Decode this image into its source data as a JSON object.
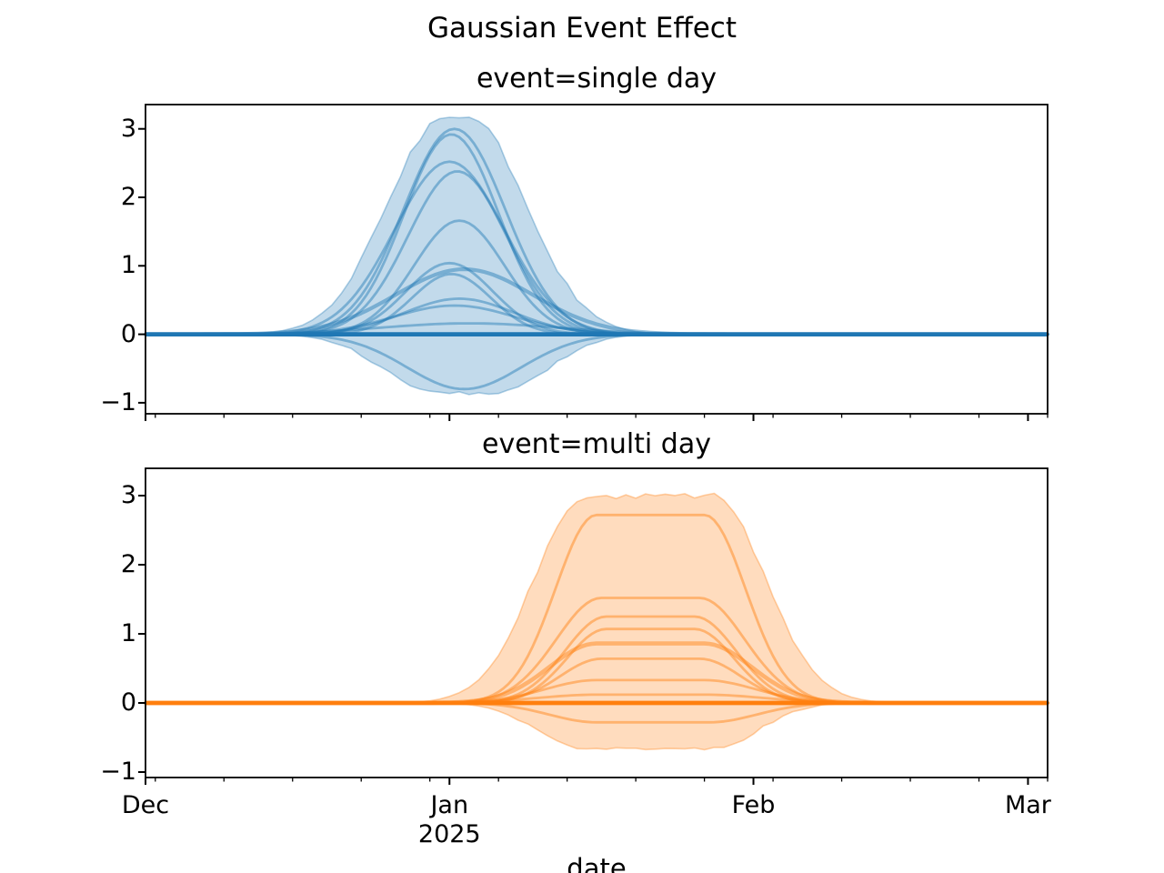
{
  "chart_data": {
    "type": "line",
    "title": "Gaussian Event Effect",
    "xlabel": "date",
    "legend": "none",
    "grid": false,
    "background_color": "#ffffff",
    "axis_color": "#000000",
    "x_axis": {
      "unit": "date",
      "day_zero_date": "Dec 1, 2024",
      "xlim_days": [
        0,
        92
      ],
      "major_ticks": [
        {
          "day": 0,
          "label": "Dec"
        },
        {
          "day": 31,
          "label": "Jan",
          "year_label": "2025"
        },
        {
          "day": 62,
          "label": "Feb"
        },
        {
          "day": 90,
          "label": "Mar"
        }
      ],
      "minor_tick_days": [
        1,
        8,
        15,
        22,
        29,
        36,
        43,
        50,
        57,
        64,
        71,
        78,
        85,
        92
      ]
    },
    "y_axis": {
      "ylim": [
        -1.14,
        3.38
      ],
      "ticks": [
        {
          "value": -1,
          "label": "−1"
        },
        {
          "value": 0,
          "label": "0"
        },
        {
          "value": 1,
          "label": "1"
        },
        {
          "value": 2,
          "label": "2"
        },
        {
          "value": 3,
          "label": "3"
        }
      ]
    },
    "facets": [
      {
        "title": "event=single day",
        "shape": "gaussian",
        "color": "#1f77b4",
        "fill_opacity": 0.27,
        "line_opacity": 0.45,
        "baseline_value": 0,
        "baseline_line_width": 4.8,
        "curves": [
          {
            "peak": 3.0,
            "center_day": 31.5,
            "sigma_days": 5.2
          },
          {
            "peak": 2.92,
            "center_day": 31.2,
            "sigma_days": 4.8
          },
          {
            "peak": 2.52,
            "center_day": 31.0,
            "sigma_days": 5.6
          },
          {
            "peak": 2.38,
            "center_day": 31.8,
            "sigma_days": 5.0
          },
          {
            "peak": 1.66,
            "center_day": 32.0,
            "sigma_days": 4.6
          },
          {
            "peak": 1.04,
            "center_day": 31.0,
            "sigma_days": 4.4
          },
          {
            "peak": 0.95,
            "center_day": 32.5,
            "sigma_days": 7.0,
            "line_width": 4.2
          },
          {
            "peak": 0.88,
            "center_day": 31.2,
            "sigma_days": 4.0
          },
          {
            "peak": 0.52,
            "center_day": 32.0,
            "sigma_days": 5.6
          },
          {
            "peak": 0.42,
            "center_day": 31.5,
            "sigma_days": 6.2
          },
          {
            "peak": 0.16,
            "center_day": 33.0,
            "sigma_days": 9.0
          },
          {
            "peak": -0.8,
            "center_day": 32.5,
            "sigma_days": 5.8
          }
        ],
        "envelope": {
          "top_peak": 3.14,
          "top_start_day": 30.5,
          "top_end_day": 33.0,
          "top_sigma_days": 5.8,
          "bottom_peak": -0.86,
          "bottom_start_day": 29.5,
          "bottom_end_day": 35.5,
          "bottom_sigma_days": 5.2
        }
      },
      {
        "title": "event=multi day",
        "shape": "plateau",
        "color": "#ff7f0e",
        "fill_opacity": 0.27,
        "line_opacity": 0.45,
        "baseline_value": 0,
        "baseline_line_width": 4.8,
        "curves": [
          {
            "peak": 2.72,
            "start_day": 46.0,
            "end_day": 57.0,
            "sigma_days": 4.2
          },
          {
            "peak": 1.52,
            "start_day": 46.5,
            "end_day": 56.5,
            "sigma_days": 4.6
          },
          {
            "peak": 1.25,
            "start_day": 47.0,
            "end_day": 56.0,
            "sigma_days": 4.2
          },
          {
            "peak": 1.07,
            "start_day": 47.0,
            "end_day": 56.0,
            "sigma_days": 4.0
          },
          {
            "peak": 0.86,
            "start_day": 46.0,
            "end_day": 57.0,
            "sigma_days": 4.8,
            "line_width": 4.6
          },
          {
            "peak": 0.64,
            "start_day": 46.5,
            "end_day": 56.5,
            "sigma_days": 4.2
          },
          {
            "peak": 0.33,
            "start_day": 46.0,
            "end_day": 57.0,
            "sigma_days": 5.2
          },
          {
            "peak": 0.12,
            "start_day": 46.0,
            "end_day": 57.0,
            "sigma_days": 6.0
          },
          {
            "peak": -0.28,
            "start_day": 46.0,
            "end_day": 57.5,
            "sigma_days": 4.8
          }
        ],
        "envelope": {
          "top_peak": 3.0,
          "top_start_day": 45.0,
          "top_end_day": 57.8,
          "top_sigma_days": 5.3,
          "bottom_peak": -0.66,
          "bottom_start_day": 44.5,
          "bottom_end_day": 58.0,
          "bottom_sigma_days": 4.5
        }
      }
    ]
  }
}
